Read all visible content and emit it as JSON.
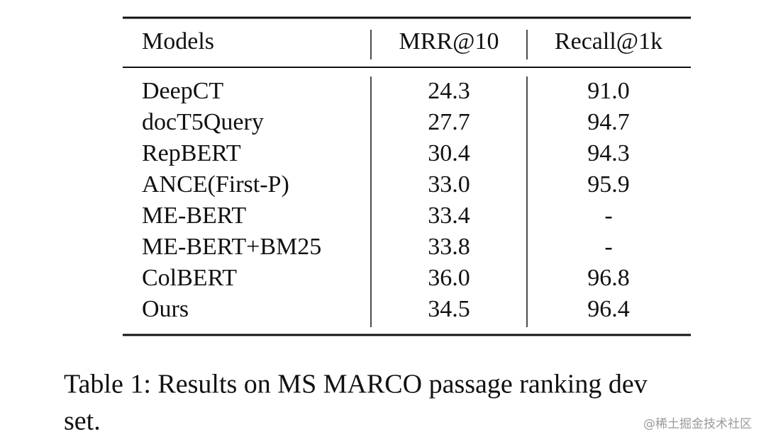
{
  "table": {
    "header": [
      "Models",
      "MRR@10",
      "Recall@1k"
    ],
    "rows": [
      [
        "DeepCT",
        "24.3",
        "91.0"
      ],
      [
        "docT5Query",
        "27.7",
        "94.7"
      ],
      [
        "RepBERT",
        "30.4",
        "94.3"
      ],
      [
        "ANCE(First-P)",
        "33.0",
        "95.9"
      ],
      [
        "ME-BERT",
        "33.4",
        "-"
      ],
      [
        "ME-BERT+BM25",
        "33.8",
        "-"
      ],
      [
        "ColBERT",
        "36.0",
        "96.8"
      ],
      [
        "Ours",
        "34.5",
        "96.4"
      ]
    ]
  },
  "caption": [
    "Table 1: Results on MS MARCO passage ranking dev",
    "set."
  ],
  "watermark": "@稀土掘金技术社区"
}
